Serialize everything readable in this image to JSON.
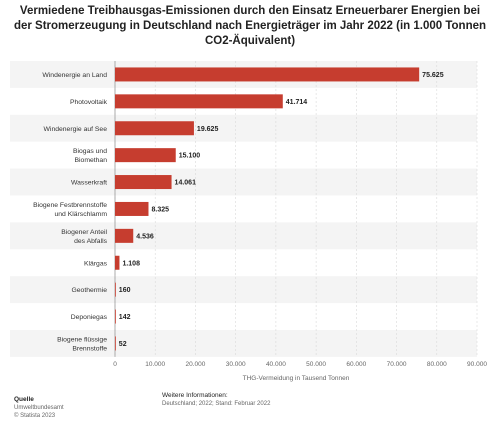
{
  "chart_data": {
    "type": "bar",
    "orientation": "horizontal",
    "title": "Vermiedene Treibhausgas-Emissionen durch den Einsatz Erneuerbarer Energien bei der Stromerzeugung in Deutschland nach Energieträger im Jahr 2022 (in 1.000 Tonnen CO2-Äquivalent)",
    "categories": [
      "Windenergie an Land",
      "Photovoltaik",
      "Windenergie auf See",
      "Biogas und Biomethan",
      "Wasserkraft",
      "Biogene Festbrennstoffe und Klärschlamm",
      "Biogener Anteil des Abfalls",
      "Klärgas",
      "Geothermie",
      "Deponiegas",
      "Biogene flüssige Brennstoffe"
    ],
    "category_lines": [
      [
        "Windenergie an Land"
      ],
      [
        "Photovoltaik"
      ],
      [
        "Windenergie auf See"
      ],
      [
        "Biogas und",
        "Biomethan"
      ],
      [
        "Wasserkraft"
      ],
      [
        "Biogene Festbrennstoffe",
        "und Klärschlamm"
      ],
      [
        "Biogener Anteil",
        "des Abfalls"
      ],
      [
        "Klärgas"
      ],
      [
        "Geothermie"
      ],
      [
        "Deponiegas"
      ],
      [
        "Biogene flüssige",
        "Brennstoffe"
      ]
    ],
    "values": [
      75625,
      41714,
      19625,
      15100,
      14061,
      8325,
      4536,
      1108,
      160,
      142,
      52
    ],
    "value_labels": [
      "75.625",
      "41.714",
      "19.625",
      "15.100",
      "14.061",
      "8.325",
      "4.536",
      "1.108",
      "160",
      "142",
      "52"
    ],
    "xlim": [
      0,
      90000
    ],
    "ticks": [
      0,
      10000,
      20000,
      30000,
      40000,
      50000,
      60000,
      70000,
      80000,
      90000
    ],
    "tick_labels": [
      "0",
      "10.000",
      "20.000",
      "30.000",
      "40.000",
      "50.000",
      "60.000",
      "70.000",
      "80.000",
      "90.000"
    ],
    "xlabel": "THG-Vermeidung in Tausend Tonnen",
    "ylabel": "",
    "grid": true,
    "bar_color": "#c63d2f",
    "stripe_color": "#f4f4f4"
  },
  "footer": {
    "source_heading": "Quelle",
    "source_lines": [
      "Umweltbundesamt",
      "© Statista 2023"
    ],
    "info_heading": "Weitere Informationen:",
    "info_text": "Deutschland; 2022; Stand: Februar 2022"
  }
}
